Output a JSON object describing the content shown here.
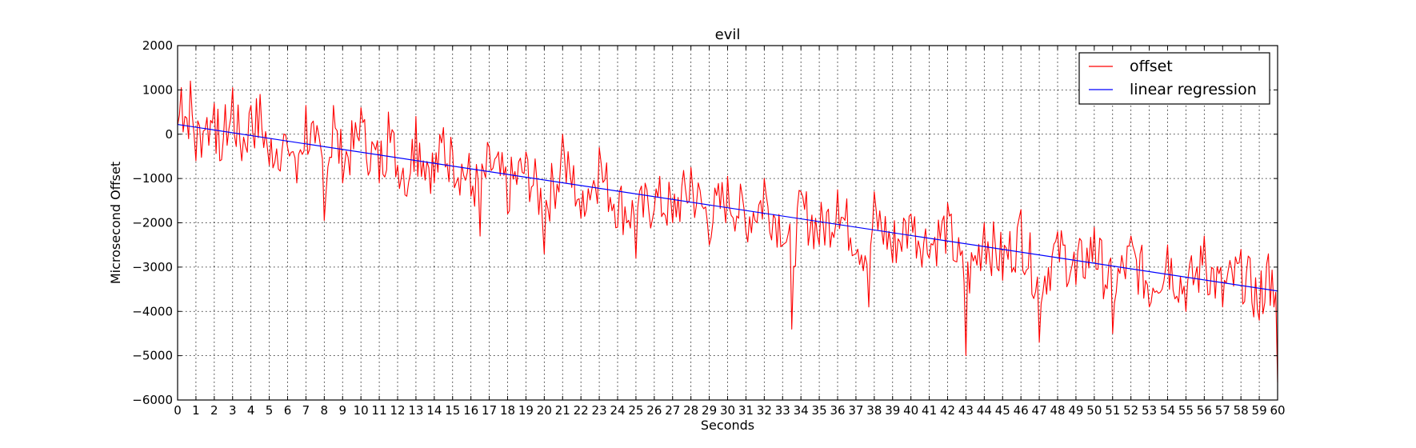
{
  "chart_data": {
    "type": "line",
    "title": "evil",
    "xlabel": "Seconds",
    "ylabel": "Microsecond Offset",
    "xlim": [
      0,
      60
    ],
    "ylim": [
      -6000,
      2000
    ],
    "xticks": [
      0,
      1,
      2,
      3,
      4,
      5,
      6,
      7,
      8,
      9,
      10,
      11,
      12,
      13,
      14,
      15,
      16,
      17,
      18,
      19,
      20,
      21,
      22,
      23,
      24,
      25,
      26,
      27,
      28,
      29,
      30,
      31,
      32,
      33,
      34,
      35,
      36,
      37,
      38,
      39,
      40,
      41,
      42,
      43,
      44,
      45,
      46,
      47,
      48,
      49,
      50,
      51,
      52,
      53,
      54,
      55,
      56,
      57,
      58,
      59,
      60
    ],
    "yticks": [
      -6000,
      -5000,
      -4000,
      -3000,
      -2000,
      -1000,
      0,
      1000,
      2000
    ],
    "grid": true,
    "legend_position": "top-right",
    "series": [
      {
        "name": "offset",
        "color": "#ff0000",
        "sample_interval": 0.1,
        "description_points": [
          [
            0.0,
            200
          ],
          [
            0.2,
            1050
          ],
          [
            0.4,
            400
          ],
          [
            0.7,
            1200
          ],
          [
            1.0,
            -600
          ],
          [
            1.5,
            100
          ],
          [
            2.0,
            700
          ],
          [
            2.3,
            -600
          ],
          [
            3.0,
            1050
          ],
          [
            3.5,
            -600
          ],
          [
            4.0,
            650
          ],
          [
            4.5,
            900
          ],
          [
            5.0,
            -700
          ],
          [
            6.0,
            -300
          ],
          [
            6.5,
            -1100
          ],
          [
            7.0,
            650
          ],
          [
            7.5,
            -200
          ],
          [
            8.0,
            -1950
          ],
          [
            8.5,
            650
          ],
          [
            9.0,
            -1100
          ],
          [
            10.0,
            600
          ],
          [
            11.0,
            -1100
          ],
          [
            11.5,
            500
          ],
          [
            12.0,
            -700
          ],
          [
            12.5,
            -1400
          ],
          [
            13.0,
            400
          ],
          [
            14.0,
            -1100
          ],
          [
            14.5,
            150
          ],
          [
            15.0,
            -400
          ],
          [
            16.0,
            -1400
          ],
          [
            16.5,
            -2300
          ],
          [
            17.0,
            -300
          ],
          [
            18.0,
            -1800
          ],
          [
            19.0,
            -400
          ],
          [
            20.0,
            -2700
          ],
          [
            21.0,
            0
          ],
          [
            22.0,
            -1900
          ],
          [
            23.0,
            -300
          ],
          [
            24.0,
            -2100
          ],
          [
            25.0,
            -2800
          ],
          [
            26.0,
            -1700
          ],
          [
            27.0,
            -2000
          ],
          [
            28.0,
            -750
          ],
          [
            29.0,
            -2500
          ],
          [
            30.0,
            -950
          ],
          [
            31.0,
            -2200
          ],
          [
            32.0,
            -1000
          ],
          [
            33.0,
            -2500
          ],
          [
            33.5,
            -4400
          ],
          [
            34.0,
            -1300
          ],
          [
            35.0,
            -2500
          ],
          [
            36.0,
            -1250
          ],
          [
            37.0,
            -2700
          ],
          [
            37.7,
            -3900
          ],
          [
            38.0,
            -1300
          ],
          [
            39.0,
            -2900
          ],
          [
            40.0,
            -1800
          ],
          [
            41.0,
            -2800
          ],
          [
            42.0,
            -1550
          ],
          [
            43.0,
            -5000
          ],
          [
            44.0,
            -2000
          ],
          [
            45.0,
            -3300
          ],
          [
            46.0,
            -1700
          ],
          [
            47.0,
            -4700
          ],
          [
            48.0,
            -2200
          ],
          [
            49.0,
            -3400
          ],
          [
            50.0,
            -2100
          ],
          [
            51.0,
            -4500
          ],
          [
            52.0,
            -2300
          ],
          [
            53.0,
            -3900
          ],
          [
            54.0,
            -2500
          ],
          [
            55.0,
            -4000
          ],
          [
            56.0,
            -2300
          ],
          [
            57.0,
            -3900
          ],
          [
            58.0,
            -2600
          ],
          [
            59.0,
            -4200
          ],
          [
            59.5,
            -2700
          ],
          [
            59.8,
            -3900
          ],
          [
            60.0,
            -5600
          ]
        ]
      },
      {
        "name": "linear regression",
        "color": "#0000ff",
        "x": [
          0,
          60
        ],
        "y": [
          220,
          -3540
        ]
      }
    ]
  }
}
